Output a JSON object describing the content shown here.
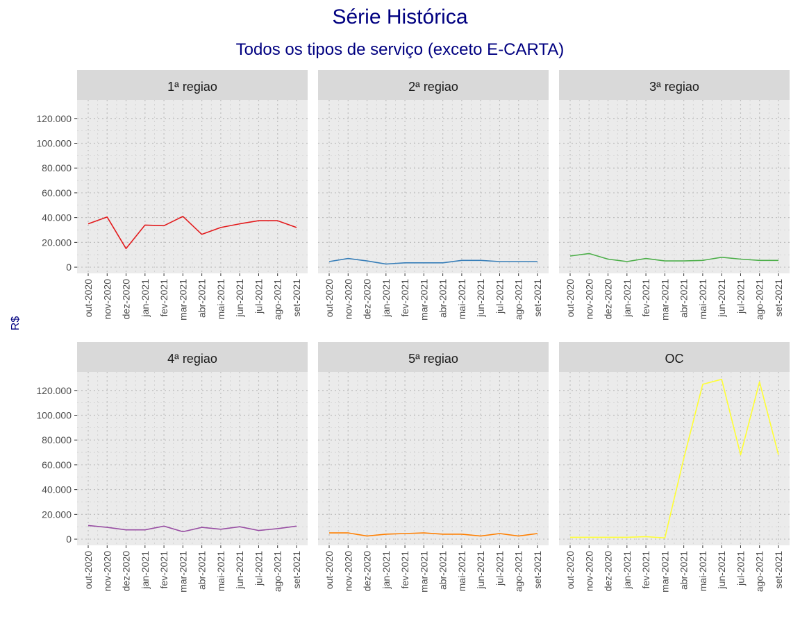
{
  "chart_data": {
    "type": "line",
    "title": "Série Histórica",
    "subtitle": "Todos os tipos de serviço (exceto E-CARTA)",
    "ylabel": "R$",
    "ylim": [
      -5000,
      135000
    ],
    "yticks": [
      0,
      20000,
      40000,
      60000,
      80000,
      100000,
      120000
    ],
    "ytick_labels": [
      "0",
      "20.000",
      "40.000",
      "60.000",
      "80.000",
      "100.000",
      "120.000"
    ],
    "categories": [
      "out-2020",
      "nov-2020",
      "dez-2020",
      "jan-2021",
      "fev-2021",
      "mar-2021",
      "abr-2021",
      "mai-2021",
      "jun-2021",
      "jul-2021",
      "ago-2021",
      "set-2021"
    ],
    "grid": true,
    "panels": [
      {
        "name": "1ª regiao",
        "color": "#e31a1c",
        "values": [
          35000,
          40500,
          15000,
          34000,
          33500,
          41000,
          26500,
          32000,
          35000,
          37500,
          37500,
          32000
        ]
      },
      {
        "name": "2ª regiao",
        "color": "#377eb8",
        "values": [
          4500,
          7000,
          5000,
          2500,
          3500,
          3500,
          3500,
          5500,
          5500,
          4500,
          4500,
          4500
        ]
      },
      {
        "name": "3ª regiao",
        "color": "#4daf4a",
        "values": [
          9000,
          11000,
          6500,
          4500,
          7000,
          5000,
          5000,
          5500,
          8000,
          6500,
          5500,
          5500
        ]
      },
      {
        "name": "4ª regiao",
        "color": "#984ea3",
        "values": [
          11000,
          9500,
          7500,
          7500,
          10500,
          6000,
          9500,
          8000,
          10000,
          7000,
          8500,
          10500
        ]
      },
      {
        "name": "5ª regiao",
        "color": "#ff7f00",
        "values": [
          5000,
          5000,
          2500,
          4000,
          4500,
          5000,
          4000,
          4000,
          2500,
          4500,
          2500,
          4500
        ]
      },
      {
        "name": "OC",
        "color": "#ffff33",
        "values": [
          1500,
          1500,
          1500,
          1500,
          2000,
          1000,
          65000,
          125000,
          129000,
          68000,
          127000,
          68000
        ]
      }
    ]
  }
}
